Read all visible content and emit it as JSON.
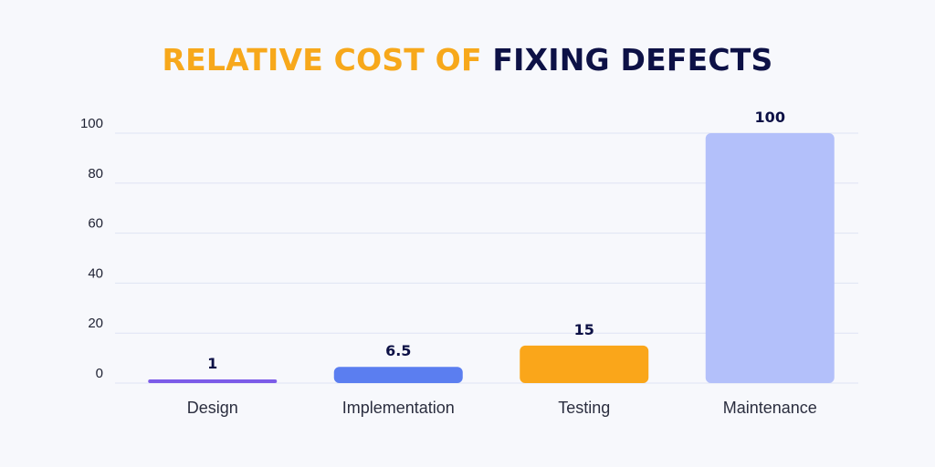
{
  "title": {
    "part_a": "RELATIVE COST OF",
    "part_b": "FIXING DEFECTS"
  },
  "chart_data": {
    "type": "bar",
    "title": "RELATIVE COST OF FIXING DEFECTS",
    "xlabel": "",
    "ylabel": "",
    "categories": [
      "Design",
      "Implementation",
      "Testing",
      "Maintenance"
    ],
    "values": [
      1,
      6.5,
      15,
      100
    ],
    "data_labels": [
      "1",
      "6.5",
      "15",
      "100"
    ],
    "yticks": [
      0,
      20,
      40,
      60,
      80,
      100
    ],
    "ytick_labels": [
      "0",
      "20",
      "40",
      "60",
      "80",
      "100"
    ],
    "ylim": [
      0,
      100
    ],
    "grid": true,
    "legend": "none",
    "bar_colors": [
      "#7c5ce8",
      "#5b7ef0",
      "#faa61a",
      "#b3c0fa"
    ],
    "grid_color": "#dfe3f3",
    "title_colors": [
      "#f7a81b",
      "#0d1146"
    ]
  }
}
